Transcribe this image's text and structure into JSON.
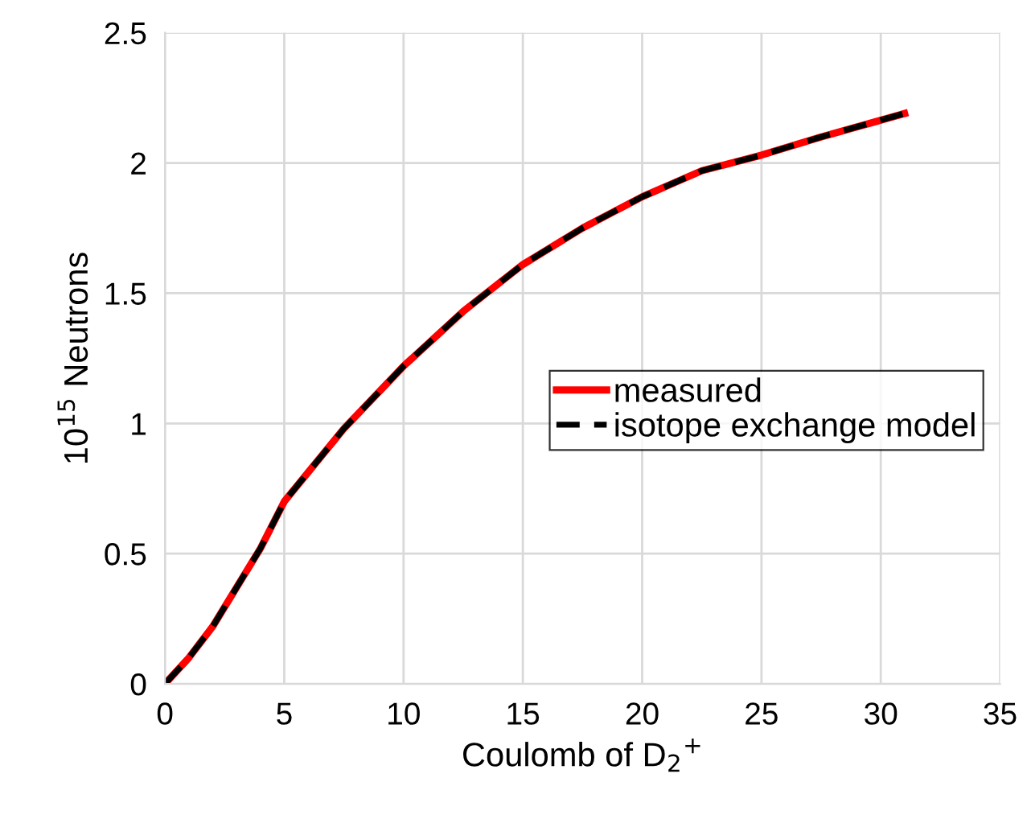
{
  "chart_data": {
    "type": "line",
    "xlabel": "Coulomb of D$_{2}$$^{+}$",
    "ylabel": "10$^{15}$ Neutrons",
    "xlim": [
      0,
      35
    ],
    "xticks": [
      0,
      5,
      10,
      15,
      20,
      25,
      30,
      35
    ],
    "ylim": [
      0,
      2.5
    ],
    "yticks": [
      0,
      {
        "value": 0.5,
        "label": "0.5"
      },
      1,
      {
        "value": 1.5,
        "label": "1.5"
      },
      2,
      {
        "value": 2.5,
        "label": "2.5"
      }
    ],
    "grid": true,
    "legend": "right",
    "marker": "none",
    "series": [
      {
        "name": "measured",
        "color": "#ff0000",
        "line_style": "solid",
        "x": [
          0,
          1,
          2,
          3,
          4,
          5,
          7.5,
          10,
          12.5,
          15,
          17.5,
          20,
          22.5,
          25,
          27.5,
          31
        ],
        "values": [
          0,
          0.1,
          0.22,
          0.37,
          0.52,
          0.7,
          0.98,
          1.22,
          1.43,
          1.61,
          1.75,
          1.87,
          1.97,
          2.03,
          2.1,
          2.19
        ]
      },
      {
        "name": "isotope exchange model",
        "color": "#000000",
        "line_style": "dashed",
        "x": [
          0,
          1,
          2,
          3,
          4,
          5,
          7.5,
          10,
          12.5,
          15,
          17.5,
          20,
          22.5,
          25,
          27.5,
          31
        ],
        "values": [
          0,
          0.1,
          0.22,
          0.37,
          0.52,
          0.7,
          0.98,
          1.22,
          1.43,
          1.61,
          1.75,
          1.87,
          1.97,
          2.03,
          2.1,
          2.19
        ]
      }
    ]
  }
}
